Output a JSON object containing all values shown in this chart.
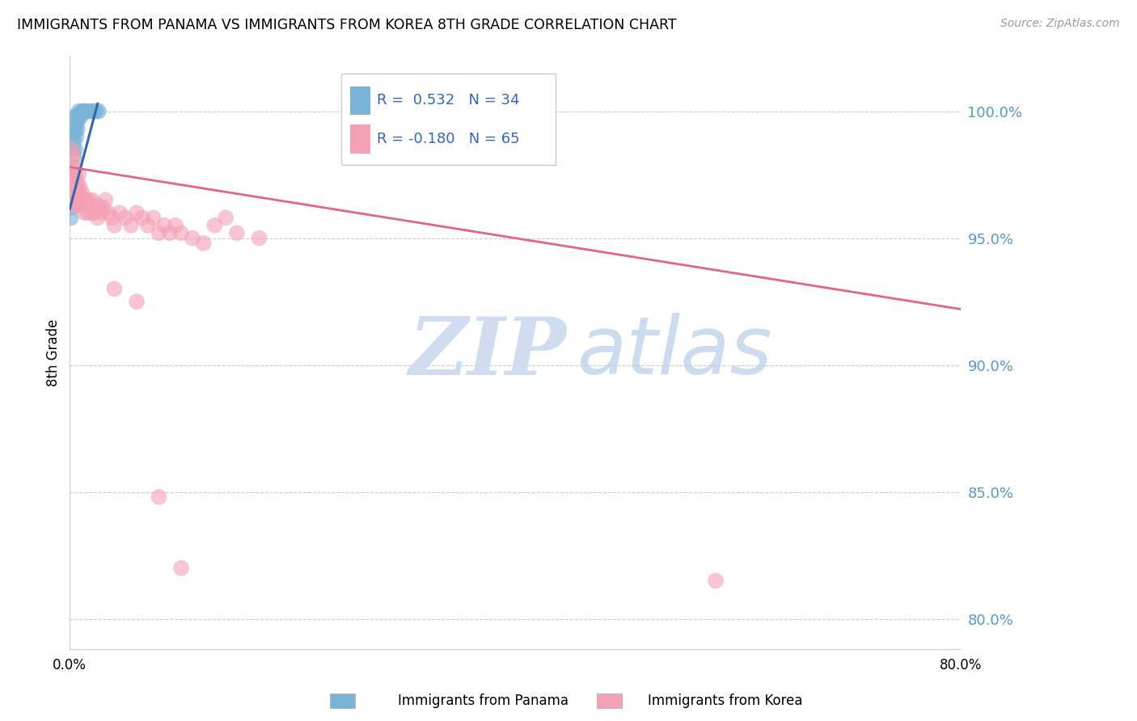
{
  "title": "IMMIGRANTS FROM PANAMA VS IMMIGRANTS FROM KOREA 8TH GRADE CORRELATION CHART",
  "source": "Source: ZipAtlas.com",
  "ylabel": "8th Grade",
  "ytick_labels": [
    "100.0%",
    "95.0%",
    "90.0%",
    "85.0%",
    "80.0%"
  ],
  "ytick_values": [
    1.0,
    0.95,
    0.9,
    0.85,
    0.8
  ],
  "xmin": 0.0,
  "xmax": 0.8,
  "ymin": 0.788,
  "ymax": 1.022,
  "color_panama": "#7ab3d8",
  "color_korea": "#f4a0b5",
  "line_color_panama": "#3366aa",
  "line_color_korea": "#e06880",
  "panama_line_x": [
    0.0,
    0.025
  ],
  "panama_line_y": [
    0.9615,
    1.003
  ],
  "korea_line_x": [
    0.0,
    0.8
  ],
  "korea_line_y": [
    0.978,
    0.922
  ],
  "panama_points_x": [
    0.001,
    0.001,
    0.001,
    0.002,
    0.002,
    0.002,
    0.002,
    0.003,
    0.003,
    0.003,
    0.003,
    0.004,
    0.004,
    0.004,
    0.005,
    0.005,
    0.005,
    0.006,
    0.006,
    0.007,
    0.007,
    0.008,
    0.008,
    0.009,
    0.01,
    0.011,
    0.012,
    0.013,
    0.015,
    0.018,
    0.02,
    0.022,
    0.024,
    0.026
  ],
  "panama_points_y": [
    0.964,
    0.97,
    0.958,
    0.972,
    0.968,
    0.975,
    0.962,
    0.978,
    0.985,
    0.975,
    0.99,
    0.982,
    0.988,
    0.994,
    0.985,
    0.992,
    0.998,
    0.99,
    0.995,
    0.993,
    0.998,
    0.997,
    1.0,
    0.999,
    0.998,
    1.0,
    1.0,
    1.0,
    1.0,
    1.0,
    1.0,
    1.0,
    1.0,
    1.0
  ],
  "korea_points_x": [
    0.001,
    0.001,
    0.001,
    0.002,
    0.002,
    0.002,
    0.002,
    0.003,
    0.003,
    0.003,
    0.004,
    0.004,
    0.005,
    0.005,
    0.006,
    0.006,
    0.007,
    0.007,
    0.008,
    0.008,
    0.009,
    0.009,
    0.01,
    0.011,
    0.012,
    0.013,
    0.014,
    0.015,
    0.016,
    0.017,
    0.018,
    0.019,
    0.02,
    0.022,
    0.025,
    0.025,
    0.028,
    0.03,
    0.032,
    0.035,
    0.038,
    0.04,
    0.045,
    0.05,
    0.055,
    0.06,
    0.065,
    0.07,
    0.075,
    0.08,
    0.085,
    0.09,
    0.095,
    0.1,
    0.11,
    0.12,
    0.13,
    0.14,
    0.15,
    0.17,
    0.04,
    0.06,
    0.08,
    0.58,
    0.1
  ],
  "korea_points_y": [
    0.98,
    0.973,
    0.965,
    0.978,
    0.97,
    0.963,
    0.985,
    0.975,
    0.968,
    0.982,
    0.972,
    0.965,
    0.975,
    0.968,
    0.97,
    0.963,
    0.972,
    0.965,
    0.968,
    0.975,
    0.97,
    0.963,
    0.966,
    0.968,
    0.963,
    0.96,
    0.965,
    0.963,
    0.96,
    0.965,
    0.963,
    0.96,
    0.965,
    0.96,
    0.963,
    0.958,
    0.96,
    0.962,
    0.965,
    0.96,
    0.958,
    0.955,
    0.96,
    0.958,
    0.955,
    0.96,
    0.958,
    0.955,
    0.958,
    0.952,
    0.955,
    0.952,
    0.955,
    0.952,
    0.95,
    0.948,
    0.955,
    0.958,
    0.952,
    0.95,
    0.93,
    0.925,
    0.848,
    0.815,
    0.82
  ],
  "watermark_zip": "ZIP",
  "watermark_atlas": "atlas",
  "legend_r_panama": "R =  0.532",
  "legend_n_panama": "N = 34",
  "legend_r_korea": "R = -0.180",
  "legend_n_korea": "N = 65"
}
